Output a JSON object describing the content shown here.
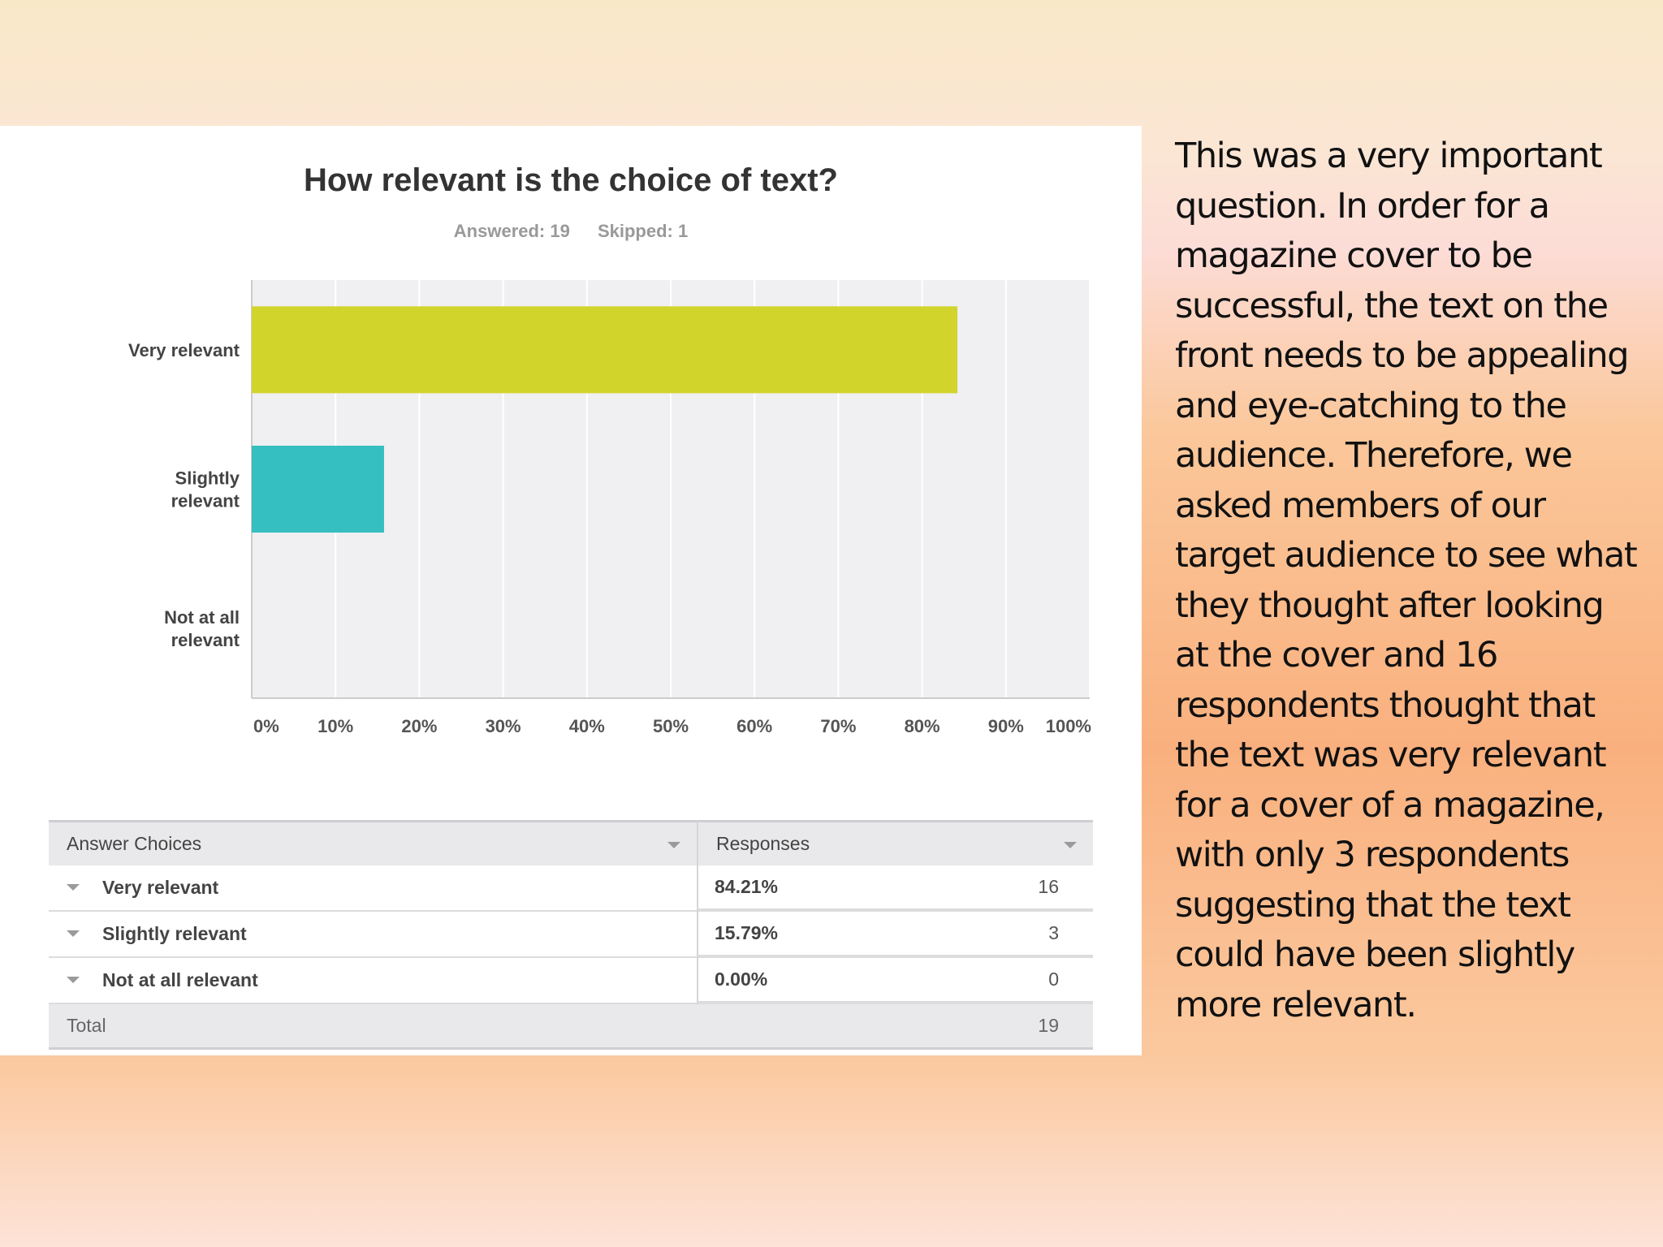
{
  "chart_data": {
    "type": "bar",
    "orientation": "horizontal",
    "title": "How relevant is the choice of text?",
    "answered_label": "Answered: 19",
    "skipped_label": "Skipped: 1",
    "categories": [
      "Very relevant",
      "Slightly relevant",
      "Not at all relevant"
    ],
    "category_label_lines": [
      [
        "Very relevant"
      ],
      [
        "Slightly",
        "relevant"
      ],
      [
        "Not at all",
        "relevant"
      ]
    ],
    "values": [
      84.21,
      15.79,
      0.0
    ],
    "colors": [
      "#d1d42b",
      "#35bfc0",
      "#e86d5e"
    ],
    "xlim": [
      0,
      100
    ],
    "x_ticks": [
      "0%",
      "10%",
      "20%",
      "30%",
      "40%",
      "50%",
      "60%",
      "70%",
      "80%",
      "90%",
      "100%"
    ],
    "grid": true,
    "plot_background": "#f0eff1"
  },
  "table": {
    "headers": [
      "Answer Choices",
      "Responses"
    ],
    "rows": [
      {
        "choice": "Very relevant",
        "percent": "84.21%",
        "count": "16"
      },
      {
        "choice": "Slightly relevant",
        "percent": "15.79%",
        "count": "3"
      },
      {
        "choice": "Not at all relevant",
        "percent": "0.00%",
        "count": "0"
      }
    ],
    "total_label": "Total",
    "total_count": "19"
  },
  "side_text": "This was a very important question. In order for a magazine cover to be successful, the text on the front needs to be appealing and eye-catching to the audience. Therefore, we asked members of our target audience to see what they thought after looking at the cover and 16 respondents thought that the text was very relevant for a cover of a magazine, with only 3 respondents suggesting that the text could have been slightly more relevant."
}
